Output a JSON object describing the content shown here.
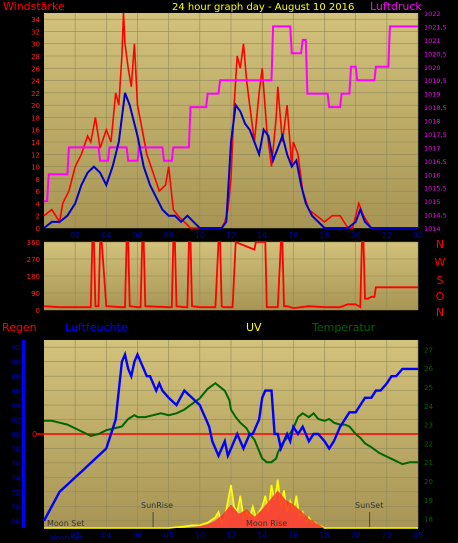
{
  "colors": {
    "frame": "#000000",
    "plot_bg_top": "#d2c27c",
    "plot_bg_bottom": "#a89555",
    "grid": "#8f8a57",
    "wind_gust": "#ff0000",
    "wind_avg": "#0000cc",
    "pressure": "#ff00ff",
    "title": "#ffff00",
    "humidity": "#0000ff",
    "temperature": "#006400",
    "uv": "#ffff00",
    "rain": "#ff0000",
    "axis_text": "#0000aa",
    "direction_text": "#ff0000"
  },
  "chart_data": [
    {
      "name": "wind-pressure",
      "type": "line",
      "title": "24 hour graph day - August 10 2016",
      "ylabel_left": "Windstärke",
      "ylabel_right": "Luftdruck",
      "x_ticks": [
        "02",
        "04",
        "06",
        "08",
        "10",
        "12",
        "14",
        "16",
        "18",
        "20",
        "22",
        "00"
      ],
      "x_range_hours": [
        0,
        24
      ],
      "y_left_ticks": [
        0,
        2,
        4,
        6,
        8,
        10,
        12,
        14,
        16,
        18,
        20,
        22,
        24,
        26,
        28,
        30,
        32,
        34
      ],
      "y_left_range": [
        0,
        35
      ],
      "y_right_ticks": [
        "1014",
        "1014,5",
        "1015",
        "1015,5",
        "1016",
        "1016,5",
        "1017",
        "1017,5",
        "1018",
        "1018,5",
        "1019",
        "1019,5",
        "1020",
        "1020,5",
        "1021",
        "1021,5",
        "1022"
      ],
      "y_right_range": [
        1014,
        1022
      ],
      "series": [
        {
          "role": "gust",
          "x": [
            0,
            0.5,
            1,
            1.2,
            1.6,
            2,
            2.4,
            2.8,
            3,
            3.3,
            3.6,
            4,
            4.3,
            4.6,
            4.8,
            5,
            5.1,
            5.2,
            5.4,
            5.6,
            5.8,
            6,
            6.3,
            6.6,
            7,
            7.4,
            7.8,
            8,
            8.3,
            8.6,
            9,
            9.4,
            9.8,
            10,
            10.5,
            11,
            11.4,
            11.6,
            11.8,
            12,
            12.2,
            12.4,
            12.6,
            12.8,
            13,
            13.2,
            13.5,
            13.8,
            14,
            14.3,
            14.6,
            14.9,
            15,
            15.3,
            15.6,
            15.9,
            16,
            16.3,
            16.6,
            17,
            17.5,
            18,
            18.5,
            19,
            19.5,
            19.8,
            20,
            20.2,
            20.5,
            21,
            22,
            23,
            24
          ],
          "y": [
            2,
            3,
            1,
            4,
            6,
            10,
            12,
            15,
            14,
            18,
            13,
            16,
            14,
            22,
            20,
            28,
            35,
            30,
            26,
            23,
            30,
            20,
            16,
            12,
            9,
            6,
            7,
            10,
            3,
            2,
            1,
            0,
            0,
            0,
            0,
            0,
            0,
            1,
            3,
            8,
            20,
            28,
            26,
            30,
            24,
            20,
            14,
            22,
            26,
            16,
            10,
            18,
            23,
            14,
            20,
            10,
            14,
            12,
            6,
            3,
            2,
            1,
            2,
            2,
            0,
            0,
            2,
            4,
            2,
            0,
            0,
            0,
            0
          ]
        },
        {
          "role": "average",
          "x": [
            0,
            0.5,
            1,
            1.5,
            2,
            2.4,
            2.8,
            3.2,
            3.6,
            4,
            4.4,
            4.8,
            5,
            5.2,
            5.5,
            5.8,
            6,
            6.4,
            6.8,
            7.2,
            7.6,
            8,
            8.4,
            8.8,
            9.2,
            9.6,
            10,
            10.5,
            11,
            11.4,
            11.7,
            12,
            12.3,
            12.6,
            12.9,
            13.2,
            13.5,
            13.8,
            14.1,
            14.4,
            14.7,
            15,
            15.3,
            15.6,
            15.9,
            16.2,
            16.5,
            16.8,
            17.2,
            17.6,
            18,
            18.5,
            19,
            19.5,
            20,
            20.3,
            20.6,
            21,
            22,
            23,
            24
          ],
          "y": [
            0,
            1,
            1,
            2,
            4,
            7,
            9,
            10,
            9,
            7,
            10,
            14,
            18,
            22,
            20,
            17,
            15,
            10,
            7,
            5,
            3,
            2,
            2,
            1,
            2,
            1,
            0,
            0,
            0,
            0,
            1,
            14,
            20,
            19,
            17,
            16,
            14,
            12,
            16,
            15,
            11,
            13,
            15,
            12,
            10,
            11,
            7,
            4,
            2,
            1,
            0,
            0,
            0,
            0,
            1,
            3,
            1,
            0,
            0,
            0,
            0
          ]
        },
        {
          "role": "pressure",
          "x": [
            0,
            0.2,
            0.3,
            1.5,
            1.6,
            3.5,
            3.6,
            4.1,
            4.2,
            5.3,
            5.4,
            6,
            6.1,
            7.6,
            7.7,
            8.2,
            8.3,
            9.3,
            9.4,
            10.4,
            10.5,
            11.2,
            11.3,
            14.6,
            14.7,
            15.8,
            15.9,
            16.5,
            16.6,
            16.8,
            16.9,
            17.4,
            17.5,
            18.2,
            18.3,
            19,
            19.1,
            19.6,
            19.7,
            20,
            20.1,
            20.6,
            20.7,
            21.2,
            21.3,
            22.1,
            22.2,
            24
          ],
          "y": [
            1015,
            1015,
            1016,
            1016,
            1017,
            1017,
            1016.5,
            1016.5,
            1017,
            1017,
            1016.5,
            1016.5,
            1017,
            1017,
            1016.5,
            1016.5,
            1017,
            1017,
            1018.5,
            1018.5,
            1019,
            1019,
            1019.5,
            1019.5,
            1021.5,
            1021.5,
            1020.5,
            1020.5,
            1021,
            1021,
            1019,
            1019,
            1019,
            1019,
            1018.5,
            1018.5,
            1019,
            1019,
            1020,
            1020,
            1019.5,
            1019.5,
            1019.5,
            1019.5,
            1020,
            1020,
            1021.5,
            1021.5
          ]
        }
      ]
    },
    {
      "name": "wind-direction",
      "type": "line",
      "labels_right": [
        "N",
        "W",
        "S",
        "O",
        "N"
      ],
      "y_ticks": [
        0,
        90,
        180,
        270,
        360
      ],
      "y_range": [
        0,
        360
      ],
      "x_range_hours": [
        0,
        24
      ],
      "series": [
        {
          "role": "direction",
          "x": [
            0,
            1,
            2,
            2.5,
            3,
            3.1,
            3.2,
            3.3,
            3.5,
            3.6,
            3.7,
            4,
            5,
            5.2,
            5.3,
            5.4,
            5.5,
            6,
            6.2,
            6.3,
            6.4,
            6.5,
            8,
            8.2,
            8.3,
            8.4,
            8.5,
            9,
            9.2,
            9.3,
            9.4,
            9.5,
            10,
            11,
            11.2,
            11.3,
            11.4,
            11.5,
            12,
            12.1,
            12.3,
            13.5,
            13.6,
            14.2,
            14.3,
            14.5,
            15,
            15.2,
            15.3,
            15.4,
            15.6,
            16,
            17,
            18,
            19,
            19.5,
            20,
            20.3,
            20.4,
            20.5,
            20.6,
            20.8,
            21,
            21.2,
            21.3,
            22,
            24
          ],
          "y": [
            20,
            15,
            15,
            15,
            15,
            360,
            360,
            20,
            20,
            360,
            360,
            20,
            15,
            15,
            360,
            360,
            20,
            15,
            15,
            360,
            360,
            20,
            15,
            15,
            360,
            360,
            20,
            15,
            15,
            360,
            360,
            20,
            15,
            15,
            360,
            360,
            20,
            15,
            15,
            15,
            360,
            320,
            360,
            360,
            15,
            15,
            15,
            360,
            360,
            20,
            20,
            10,
            20,
            15,
            15,
            30,
            30,
            15,
            360,
            360,
            60,
            60,
            70,
            70,
            120,
            120,
            120
          ]
        }
      ]
    },
    {
      "name": "humidity-temperature",
      "type": "line",
      "labels": {
        "rain": "Regen",
        "humidity": "Luftfeuchte",
        "uv": "UV",
        "temperature": "Temperatur"
      },
      "x_ticks": [
        "02",
        "04",
        "06",
        "08",
        "10",
        "12",
        "14",
        "16",
        "18",
        "20",
        "22",
        "00"
      ],
      "x_range_hours": [
        0,
        24
      ],
      "y_left_ticks": [
        68,
        70,
        72,
        74,
        76,
        78,
        80,
        82,
        84,
        86,
        88,
        90,
        92
      ],
      "y_left_range": [
        67,
        93
      ],
      "y_right_ticks": [
        18,
        19,
        20,
        21,
        22,
        23,
        24,
        25,
        26,
        27
      ],
      "y_right_range": [
        17.5,
        27.5
      ],
      "rain_zero_label": "0",
      "annotations": [
        "Moon Set",
        "SunRise",
        "Moon Rise",
        "SunSet",
        "Moon Set"
      ],
      "series": [
        {
          "role": "humidity",
          "x": [
            0,
            0.5,
            1,
            1.5,
            2,
            2.5,
            3,
            3.5,
            4,
            4.3,
            4.6,
            4.8,
            5,
            5.2,
            5.4,
            5.6,
            5.8,
            6,
            6.2,
            6.4,
            6.6,
            6.8,
            7,
            7.2,
            7.4,
            7.6,
            8,
            8.5,
            9,
            9.5,
            10,
            10.2,
            10.4,
            10.6,
            10.8,
            11,
            11.2,
            11.4,
            11.6,
            11.8,
            12,
            12.2,
            12.4,
            12.6,
            12.8,
            13,
            13.2,
            13.4,
            13.6,
            13.8,
            14,
            14.2,
            14.4,
            14.6,
            14.8,
            15,
            15.2,
            15.4,
            15.6,
            15.8,
            16,
            16.3,
            16.6,
            17,
            17.3,
            17.6,
            18,
            18.3,
            18.6,
            19,
            19.3,
            19.6,
            20,
            20.3,
            20.6,
            21,
            21.3,
            21.6,
            22,
            22.3,
            22.6,
            23,
            23.5,
            24
          ],
          "y": [
            68,
            70,
            72,
            73,
            74,
            75,
            76,
            77,
            78,
            80,
            82,
            86,
            90,
            91,
            89,
            88,
            90,
            91,
            90,
            89,
            88,
            88,
            87,
            86,
            87,
            86,
            85,
            84,
            86,
            85,
            84,
            83,
            82,
            81,
            79,
            78,
            77,
            78,
            79,
            77,
            78,
            79,
            80,
            79,
            78,
            79,
            80,
            80,
            81,
            82,
            85,
            86,
            86,
            86,
            80,
            80,
            78,
            79,
            80,
            79,
            81,
            80,
            81,
            79,
            80,
            80,
            79,
            78,
            79,
            81,
            82,
            83,
            83,
            84,
            85,
            85,
            86,
            86,
            87,
            88,
            88,
            89,
            89,
            89
          ]
        },
        {
          "role": "temperature",
          "x": [
            0,
            0.5,
            1,
            1.5,
            2,
            2.5,
            3,
            3.5,
            4,
            4.5,
            5,
            5.2,
            5.4,
            5.8,
            6,
            6.5,
            7,
            7.5,
            8,
            8.5,
            9,
            9.5,
            10,
            10.5,
            11,
            11.3,
            11.6,
            11.9,
            12,
            12.3,
            12.6,
            13,
            13.2,
            13.5,
            14,
            14.3,
            14.6,
            14.9,
            15,
            15.3,
            15.6,
            16,
            16.3,
            16.6,
            17,
            17.3,
            17.6,
            18,
            18.3,
            18.6,
            19,
            19.3,
            19.6,
            20,
            20.3,
            20.6,
            21,
            21.5,
            22,
            22.5,
            23,
            23.5,
            24
          ],
          "y": [
            23.2,
            23.2,
            23.1,
            23,
            22.8,
            22.6,
            22.4,
            22.5,
            22.7,
            22.8,
            22.9,
            23.1,
            23.3,
            23.5,
            23.4,
            23.4,
            23.5,
            23.6,
            23.5,
            23.6,
            23.8,
            24.1,
            24.4,
            24.9,
            25.2,
            25,
            24.8,
            24.3,
            23.8,
            23.4,
            23.1,
            22.8,
            22.5,
            22.2,
            21.2,
            21,
            21,
            21.2,
            21.5,
            22,
            22.3,
            22.8,
            23.4,
            23.6,
            23.4,
            23.6,
            23.3,
            23.2,
            23.3,
            23.1,
            23,
            23,
            22.9,
            22.5,
            22.3,
            22,
            21.8,
            21.5,
            21.3,
            21.1,
            20.9,
            21,
            21
          ]
        },
        {
          "role": "uv",
          "x": [
            0,
            8,
            9,
            9.5,
            10,
            10.5,
            11,
            11.2,
            11.4,
            11.6,
            11.8,
            12,
            12.2,
            12.4,
            12.6,
            12.8,
            13,
            13.2,
            13.4,
            13.6,
            13.8,
            14,
            14.2,
            14.4,
            14.6,
            14.8,
            15,
            15.2,
            15.4,
            15.6,
            15.8,
            16,
            16.2,
            16.4,
            16.6,
            16.8,
            17,
            17.2,
            17.4,
            17.6,
            17.8,
            18,
            19,
            24
          ],
          "y": [
            0,
            0,
            0.3,
            0.5,
            0.5,
            1,
            2,
            3,
            1,
            2,
            5,
            8,
            4,
            3,
            6,
            2,
            3,
            2,
            4,
            2,
            3,
            4,
            6,
            3,
            8,
            5,
            9,
            4,
            7,
            3,
            5,
            3,
            6,
            2,
            3,
            1,
            2,
            1,
            1,
            0.5,
            0.3,
            0,
            0,
            0
          ]
        },
        {
          "role": "rain",
          "x": [
            0,
            9,
            10,
            10.5,
            11,
            11.5,
            12,
            12.5,
            13,
            13.5,
            14,
            14.5,
            15,
            15.5,
            16,
            16.5,
            17,
            17.5,
            18,
            24
          ],
          "y": [
            0,
            0,
            0.2,
            0.4,
            0.8,
            1.5,
            2.5,
            1.5,
            2,
            1.2,
            2,
            3,
            4,
            3,
            2.5,
            1.8,
            1,
            0.5,
            0,
            0
          ]
        }
      ]
    }
  ]
}
